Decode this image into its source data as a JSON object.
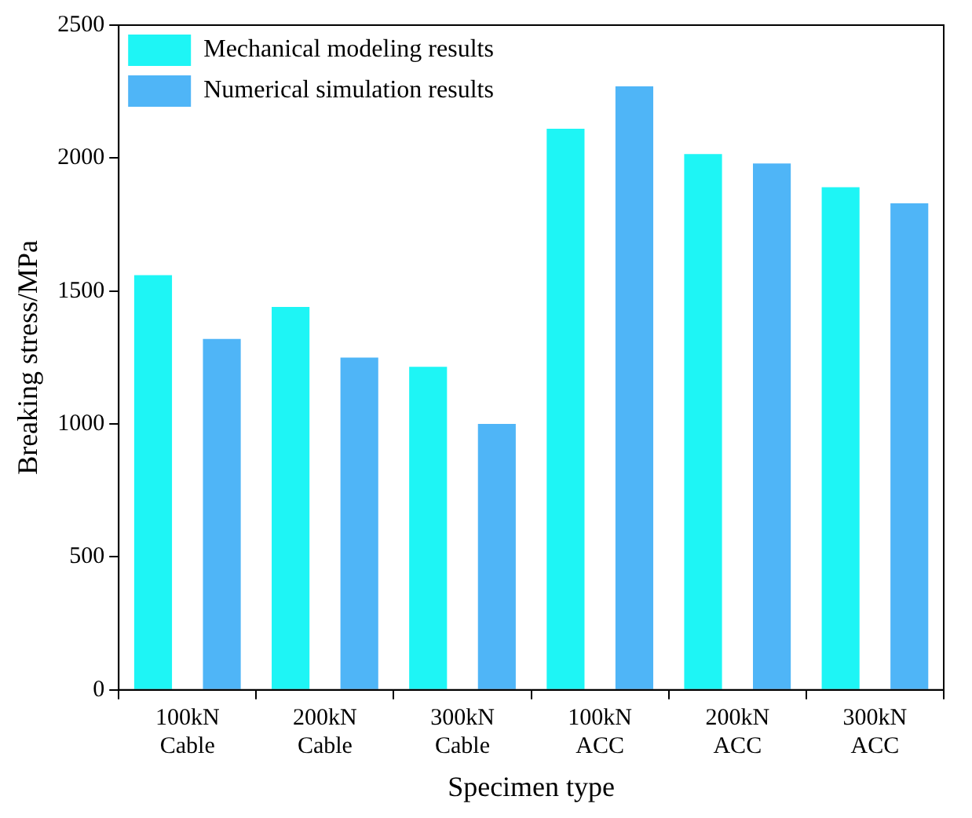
{
  "chart_data": {
    "type": "bar",
    "xlabel": "Specimen type",
    "ylabel": "Breaking stress/MPa",
    "categories": [
      "100kN\nCable",
      "200kN\nCable",
      "300kN\nCable",
      "100kN\nACC",
      "200kN\nACC",
      "300kN\nACC"
    ],
    "series": [
      {
        "name": "Mechanical modeling results",
        "color": "#1ef5f5",
        "values": [
          1560,
          1440,
          1215,
          2110,
          2015,
          1890
        ]
      },
      {
        "name": "Numerical simulation results",
        "color": "#4fb5f7",
        "values": [
          1320,
          1250,
          1000,
          2270,
          1980,
          1830
        ]
      }
    ],
    "ylim": [
      0,
      2500
    ],
    "yticks": [
      0,
      500,
      1000,
      1500,
      2000,
      2500
    ],
    "grid": false,
    "legend": "top left"
  }
}
